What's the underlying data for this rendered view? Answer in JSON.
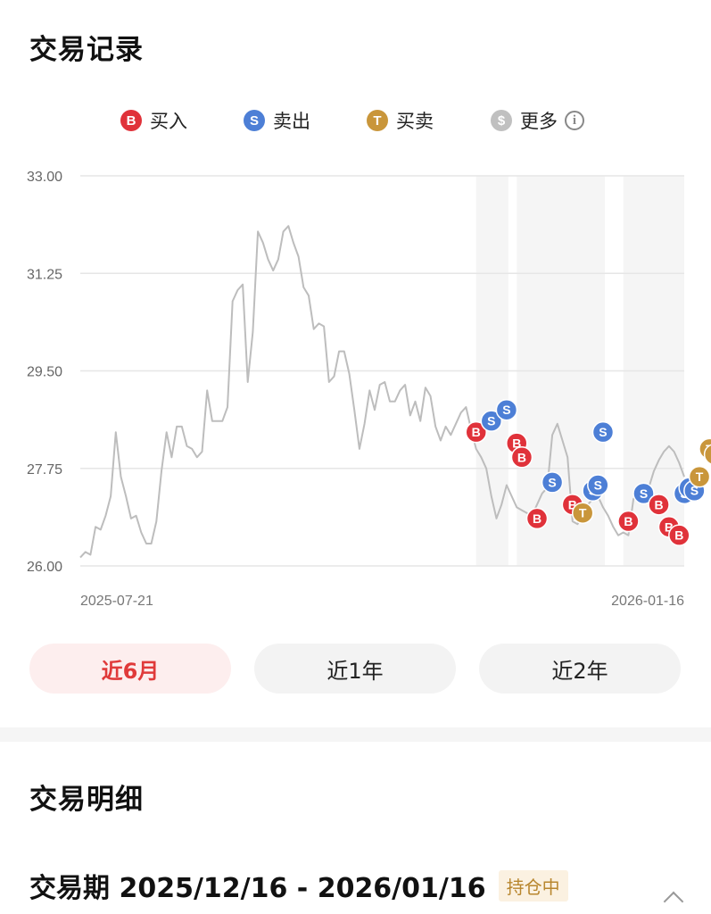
{
  "records": {
    "title": "交易记录"
  },
  "legend": [
    {
      "glyph": "B",
      "label": "买入",
      "color": "#e0323a",
      "icon": "buy-icon"
    },
    {
      "glyph": "S",
      "label": "卖出",
      "color": "#4d7fd6",
      "icon": "sell-icon"
    },
    {
      "glyph": "T",
      "label": "买卖",
      "color": "#c9963b",
      "icon": "trade-icon"
    },
    {
      "glyph": "$",
      "label": "更多",
      "color": "#c0c0c0",
      "icon": "more-dollar-icon"
    }
  ],
  "chart_data": {
    "type": "line",
    "y_ticks": [
      "33.00",
      "31.25",
      "29.50",
      "27.75",
      "26.00"
    ],
    "ylim": [
      26.0,
      33.0
    ],
    "x_start_label": "2025-07-21",
    "x_end_label": "2026-01-16",
    "grid": true,
    "price_series": [
      26.15,
      26.25,
      26.2,
      26.7,
      26.65,
      26.9,
      27.25,
      28.4,
      27.6,
      27.25,
      26.85,
      26.9,
      26.6,
      26.4,
      26.4,
      26.8,
      27.7,
      28.4,
      27.95,
      28.5,
      28.5,
      28.15,
      28.1,
      27.95,
      28.05,
      29.15,
      28.6,
      28.6,
      28.6,
      28.85,
      30.75,
      30.95,
      31.05,
      29.3,
      30.2,
      32.0,
      31.8,
      31.5,
      31.3,
      31.5,
      32.0,
      32.1,
      31.8,
      31.55,
      31.0,
      30.85,
      30.25,
      30.35,
      30.3,
      29.3,
      29.4,
      29.85,
      29.85,
      29.45,
      28.8,
      28.1,
      28.55,
      29.15,
      28.8,
      29.25,
      29.3,
      28.95,
      28.95,
      29.15,
      29.25,
      28.7,
      28.95,
      28.6,
      29.2,
      29.05,
      28.5,
      28.25,
      28.5,
      28.35,
      28.55,
      28.75,
      28.85,
      28.45,
      28.1,
      27.95,
      27.75,
      27.25,
      26.85,
      27.1,
      27.45,
      27.25,
      27.05,
      27.0,
      26.95,
      26.9,
      27.1,
      27.3,
      27.4,
      28.35,
      28.55,
      28.25,
      27.95,
      26.8,
      26.75,
      26.95,
      27.1,
      27.2,
      27.25,
      27.05,
      26.9,
      26.7,
      26.55,
      26.6,
      26.55,
      27.2,
      27.3,
      27.35,
      27.4,
      27.7,
      27.9,
      28.05,
      28.15,
      28.05,
      27.85,
      27.6
    ],
    "markers": [
      {
        "type": "B",
        "i": 78,
        "y": 28.4
      },
      {
        "type": "S",
        "i": 81,
        "y": 28.6
      },
      {
        "type": "S",
        "i": 84,
        "y": 28.8
      },
      {
        "type": "B",
        "i": 86,
        "y": 28.2
      },
      {
        "type": "B",
        "i": 87,
        "y": 27.95
      },
      {
        "type": "B",
        "i": 90,
        "y": 26.85
      },
      {
        "type": "S",
        "i": 93,
        "y": 27.5
      },
      {
        "type": "B",
        "i": 97,
        "y": 27.1
      },
      {
        "type": "T",
        "i": 99,
        "y": 26.95
      },
      {
        "type": "S",
        "i": 101,
        "y": 27.35
      },
      {
        "type": "S",
        "i": 102,
        "y": 27.45
      },
      {
        "type": "S",
        "i": 103,
        "y": 28.4
      },
      {
        "type": "B",
        "i": 108,
        "y": 26.8
      },
      {
        "type": "S",
        "i": 111,
        "y": 27.3
      },
      {
        "type": "B",
        "i": 114,
        "y": 27.1
      },
      {
        "type": "B",
        "i": 116,
        "y": 26.7
      },
      {
        "type": "B",
        "i": 118,
        "y": 26.55
      },
      {
        "type": "S",
        "i": 119,
        "y": 27.3
      },
      {
        "type": "S",
        "i": 120,
        "y": 27.4
      },
      {
        "type": "S",
        "i": 121,
        "y": 27.35
      },
      {
        "type": "T",
        "i": 122,
        "y": 27.6
      },
      {
        "type": "T",
        "i": 124,
        "y": 28.1
      },
      {
        "type": "T",
        "i": 125,
        "y": 28.0
      }
    ],
    "holding_bands": [
      [
        78,
        84
      ],
      [
        86,
        103
      ],
      [
        107,
        126
      ]
    ]
  },
  "range_buttons": [
    {
      "label": "近6月",
      "active": true
    },
    {
      "label": "近1年",
      "active": false
    },
    {
      "label": "近2年",
      "active": false
    }
  ],
  "detail": {
    "title": "交易明细",
    "period": "交易期 2025/12/16 - 2026/01/16",
    "status": "持仓中"
  }
}
